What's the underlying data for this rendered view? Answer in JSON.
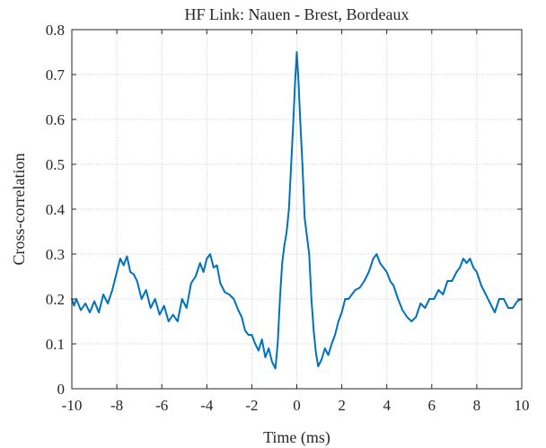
{
  "chart_data": {
    "type": "line",
    "title": "HF Link: Nauen - Brest, Bordeaux",
    "xlabel": "Time (ms)",
    "ylabel": "Cross-correlation",
    "xlim": [
      -10,
      10
    ],
    "ylim": [
      0,
      0.8
    ],
    "xticks": [
      -10,
      -8,
      -6,
      -4,
      -2,
      0,
      2,
      4,
      6,
      8,
      10
    ],
    "yticks": [
      0,
      0.1,
      0.2,
      0.3,
      0.4,
      0.5,
      0.6,
      0.7,
      0.8
    ],
    "grid": true,
    "line_color": "#0072bd",
    "series": [
      {
        "x": [
          -10,
          -9.9,
          -9.8,
          -9.6,
          -9.4,
          -9.2,
          -9.0,
          -8.8,
          -8.6,
          -8.4,
          -8.2,
          -8.0,
          -7.85,
          -7.7,
          -7.55,
          -7.4,
          -7.25,
          -7.1,
          -6.9,
          -6.7,
          -6.5,
          -6.3,
          -6.1,
          -5.9,
          -5.7,
          -5.5,
          -5.3,
          -5.1,
          -4.9,
          -4.7,
          -4.5,
          -4.3,
          -4.15,
          -4.0,
          -3.85,
          -3.7,
          -3.55,
          -3.4,
          -3.2,
          -3.0,
          -2.8,
          -2.6,
          -2.45,
          -2.3,
          -2.15,
          -2.0,
          -1.85,
          -1.7,
          -1.55,
          -1.4,
          -1.25,
          -1.1,
          -0.95,
          -0.85,
          -0.75,
          -0.65,
          -0.55,
          -0.45,
          -0.35,
          -0.25,
          -0.15,
          -0.08,
          0.0,
          0.08,
          0.15,
          0.25,
          0.35,
          0.45,
          0.55,
          0.65,
          0.75,
          0.85,
          0.95,
          1.1,
          1.25,
          1.4,
          1.55,
          1.7,
          1.85,
          2.0,
          2.15,
          2.3,
          2.45,
          2.6,
          2.8,
          3.0,
          3.2,
          3.4,
          3.55,
          3.7,
          3.85,
          4.0,
          4.15,
          4.3,
          4.5,
          4.7,
          4.9,
          5.1,
          5.3,
          5.5,
          5.7,
          5.9,
          6.1,
          6.3,
          6.5,
          6.7,
          6.9,
          7.1,
          7.25,
          7.4,
          7.55,
          7.7,
          7.85,
          8.0,
          8.2,
          8.4,
          8.6,
          8.8,
          9.0,
          9.2,
          9.4,
          9.6,
          9.8,
          10.0
        ],
        "values": [
          0.2,
          0.185,
          0.2,
          0.175,
          0.19,
          0.17,
          0.195,
          0.17,
          0.21,
          0.19,
          0.22,
          0.26,
          0.29,
          0.275,
          0.295,
          0.26,
          0.255,
          0.24,
          0.2,
          0.22,
          0.18,
          0.2,
          0.165,
          0.185,
          0.15,
          0.165,
          0.15,
          0.2,
          0.18,
          0.235,
          0.25,
          0.28,
          0.26,
          0.29,
          0.3,
          0.27,
          0.275,
          0.235,
          0.215,
          0.21,
          0.2,
          0.175,
          0.16,
          0.13,
          0.12,
          0.12,
          0.1,
          0.085,
          0.11,
          0.07,
          0.09,
          0.06,
          0.045,
          0.1,
          0.2,
          0.28,
          0.32,
          0.35,
          0.4,
          0.5,
          0.6,
          0.68,
          0.75,
          0.68,
          0.6,
          0.5,
          0.38,
          0.34,
          0.3,
          0.2,
          0.13,
          0.08,
          0.05,
          0.065,
          0.09,
          0.075,
          0.1,
          0.12,
          0.15,
          0.17,
          0.2,
          0.2,
          0.21,
          0.22,
          0.225,
          0.24,
          0.26,
          0.29,
          0.3,
          0.28,
          0.27,
          0.26,
          0.24,
          0.23,
          0.2,
          0.175,
          0.16,
          0.15,
          0.16,
          0.19,
          0.18,
          0.2,
          0.2,
          0.22,
          0.21,
          0.24,
          0.24,
          0.26,
          0.27,
          0.29,
          0.28,
          0.29,
          0.27,
          0.26,
          0.23,
          0.21,
          0.19,
          0.17,
          0.2,
          0.2,
          0.18,
          0.18,
          0.195,
          0.2
        ]
      }
    ]
  }
}
